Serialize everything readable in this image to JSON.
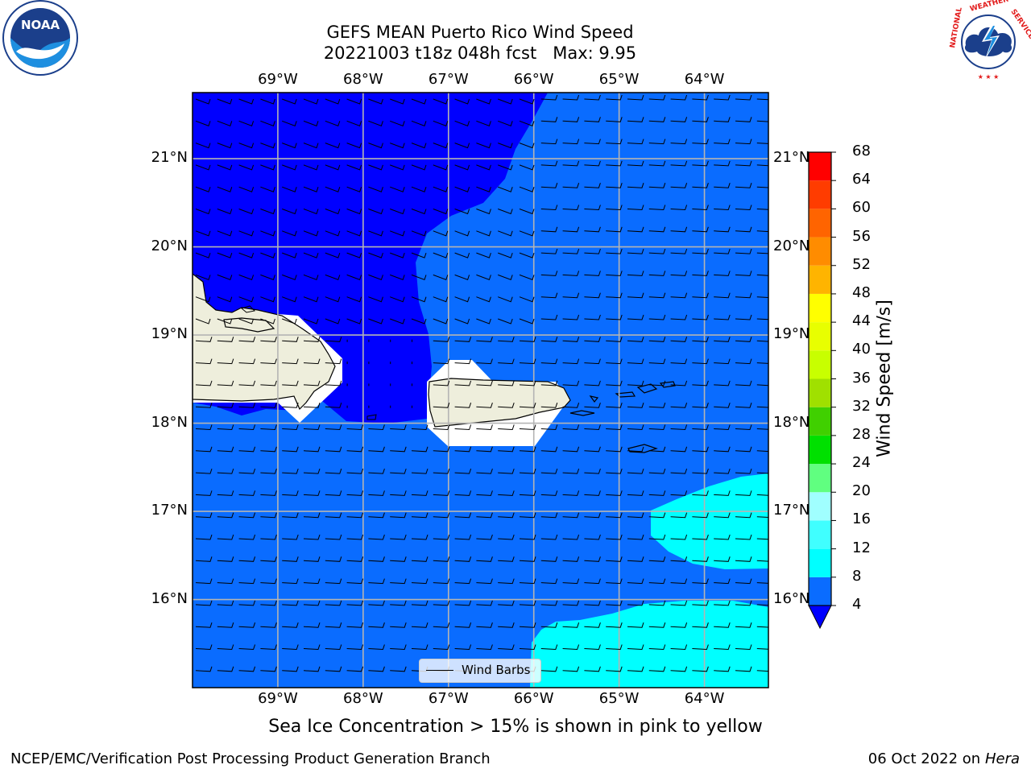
{
  "title": {
    "line1": "GEFS MEAN Puerto Rico Wind Speed",
    "line2": "20221003 t18z 048h fcst   Max: 9.95"
  },
  "axes": {
    "lon_labels": [
      "69°W",
      "68°W",
      "67°W",
      "66°W",
      "65°W",
      "64°W"
    ],
    "lat_labels": [
      "21°N",
      "20°N",
      "19°N",
      "18°N",
      "17°N",
      "16°N"
    ],
    "lon_values": [
      -69,
      -68,
      -67,
      -66,
      -65,
      -64
    ],
    "lat_values": [
      21,
      20,
      19,
      18,
      17,
      16
    ],
    "lon_range": [
      -70,
      -63.25
    ],
    "lat_range": [
      15,
      21.75
    ],
    "grid": true
  },
  "legend": {
    "entry": "Wind Barbs"
  },
  "colorbar": {
    "title": "Wind Speed [m/s]",
    "ticks": [
      "68",
      "64",
      "60",
      "56",
      "52",
      "48",
      "44",
      "40",
      "36",
      "32",
      "28",
      "24",
      "20",
      "16",
      "12",
      "8",
      "4"
    ],
    "levels": [
      4,
      8,
      12,
      16,
      20,
      24,
      28,
      32,
      36,
      40,
      44,
      48,
      52,
      56,
      60,
      64,
      68
    ],
    "colors": [
      "#0a6cff",
      "#00ffff",
      "#40ffff",
      "#a0ffff",
      "#60ff80",
      "#00e000",
      "#40d000",
      "#a0e000",
      "#c8ff00",
      "#e8ff00",
      "#ffff00",
      "#ffb400",
      "#ff8c00",
      "#ff6400",
      "#ff3c00",
      "#ff0000"
    ],
    "under_color": "#0000ff",
    "extend": "min"
  },
  "wind": {
    "barb_direction": "from east",
    "regions": [
      {
        "name": "north-west calm zone",
        "speed_band": "< 4",
        "color": "#0000ff"
      },
      {
        "name": "open sea",
        "speed_band": "4-8",
        "color": "#0a6cff"
      },
      {
        "name": "south-east patches",
        "speed_band": "8-12",
        "color": "#00ffff"
      }
    ]
  },
  "land_color": "#eeeedc",
  "notes": {
    "ice": "Sea Ice Concentration > 15% is shown in pink to yellow"
  },
  "footer": {
    "left": "NCEP/EMC/Verification Post Processing Product Generation Branch",
    "date": "06 Oct 2022 on ",
    "machine": "Hera"
  },
  "logos": {
    "left": "NOAA",
    "right": "NATIONAL WEATHER SERVICE"
  }
}
